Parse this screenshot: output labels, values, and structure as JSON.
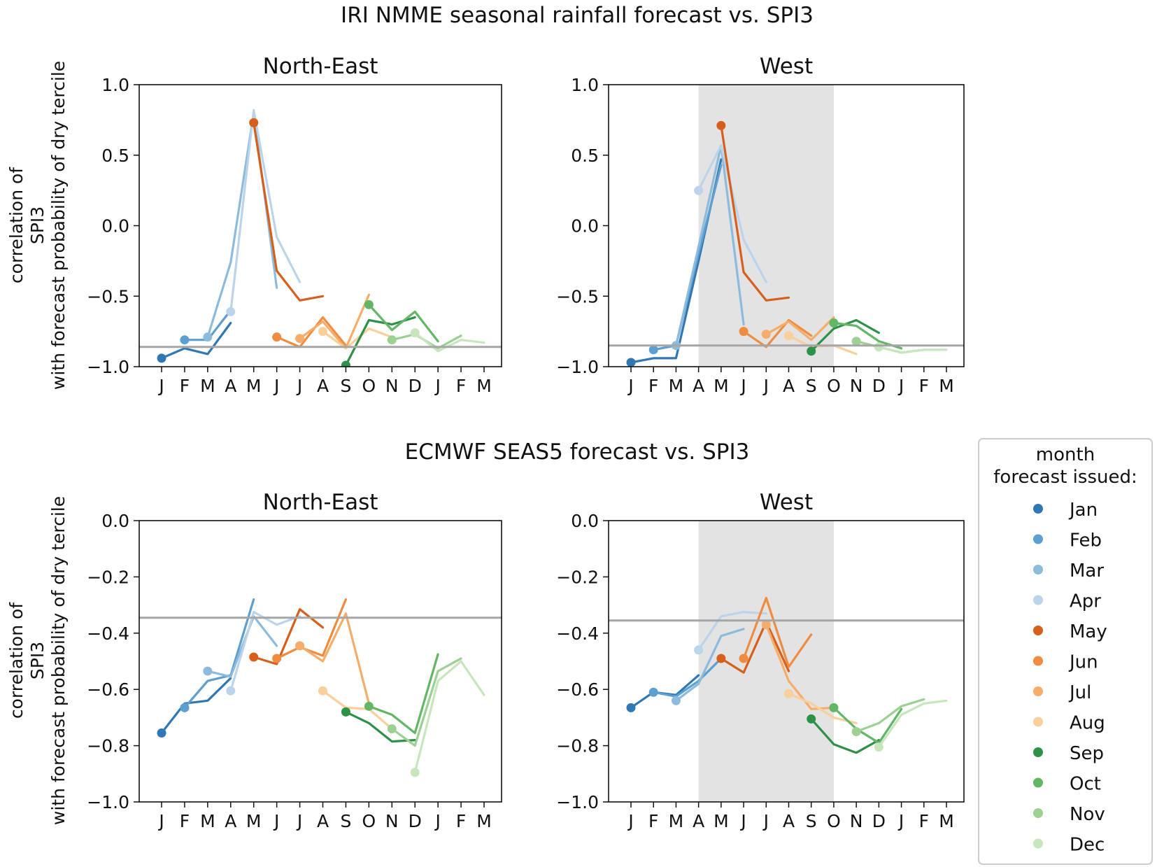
{
  "colors": {
    "Jan": "#2f78b3",
    "Feb": "#5d9fd0",
    "Mar": "#8dbbdc",
    "Apr": "#bcd4ea",
    "May": "#d75f1c",
    "Jun": "#ef8c3f",
    "Jul": "#f6ad69",
    "Aug": "#f9cf9b",
    "Sep": "#2e9148",
    "Oct": "#62b766",
    "Nov": "#9dd193",
    "Dec": "#c8e6be",
    "threshold": "#a6a6a6",
    "wet_season": "#e3e3e3"
  },
  "y_axis_label_line1": "correlation of",
  "y_axis_label_line2": "SPI3",
  "y_axis_label_line3": "with forecast probability of dry tercile",
  "legend": {
    "title_line1": "month",
    "title_line2": "forecast issued:",
    "items": [
      "Jan",
      "Feb",
      "Mar",
      "Apr",
      "May",
      "Jun",
      "Jul",
      "Aug",
      "Sep",
      "Oct",
      "Nov",
      "Dec"
    ]
  },
  "chart_data": [
    {
      "type": "line",
      "section_title": "IRI NMME seasonal rainfall forecast vs. SPI3",
      "title": "North-East",
      "x_tick_labels": [
        "J",
        "F",
        "M",
        "A",
        "M",
        "J",
        "J",
        "A",
        "S",
        "O",
        "N",
        "D",
        "J",
        "F",
        "M"
      ],
      "ylim": [
        -1.0,
        1.0
      ],
      "yticks": [
        1.0,
        0.5,
        0.0,
        -0.5,
        -1.0
      ],
      "y_tick_labels": [
        "1.0",
        "0.5",
        "0.0",
        "−0.5",
        "−1.0"
      ],
      "significance_threshold": -0.86,
      "wet_season_shaded": null,
      "series": [
        {
          "name": "Jan",
          "x": [
            0,
            1,
            2,
            3
          ],
          "values": [
            -0.94,
            -0.87,
            -0.91,
            -0.69
          ]
        },
        {
          "name": "Feb",
          "x": [
            1,
            2,
            3
          ],
          "values": [
            -0.81,
            -0.81,
            -0.6
          ]
        },
        {
          "name": "Mar",
          "x": [
            2,
            3,
            4,
            5
          ],
          "values": [
            -0.79,
            -0.26,
            0.8,
            -0.44
          ]
        },
        {
          "name": "Apr",
          "x": [
            3,
            4,
            5,
            6
          ],
          "values": [
            -0.61,
            0.82,
            -0.08,
            -0.4
          ]
        },
        {
          "name": "May",
          "x": [
            4,
            5,
            6,
            7
          ],
          "values": [
            0.73,
            -0.32,
            -0.53,
            -0.5
          ]
        },
        {
          "name": "Jun",
          "x": [
            5,
            6,
            7,
            8
          ],
          "values": [
            -0.79,
            -0.86,
            -0.65,
            -0.85
          ]
        },
        {
          "name": "Jul",
          "x": [
            6,
            7,
            8,
            9
          ],
          "values": [
            -0.8,
            -0.68,
            -0.87,
            -0.49
          ]
        },
        {
          "name": "Aug",
          "x": [
            7,
            8,
            9,
            10
          ],
          "values": [
            -0.75,
            -0.87,
            -0.73,
            -0.79
          ]
        },
        {
          "name": "Sep",
          "x": [
            8,
            9,
            10,
            11
          ],
          "values": [
            -0.99,
            -0.67,
            -0.7,
            -0.65
          ]
        },
        {
          "name": "Oct",
          "x": [
            9,
            10,
            11,
            12
          ],
          "values": [
            -0.56,
            -0.74,
            -0.61,
            -0.82
          ]
        },
        {
          "name": "Nov",
          "x": [
            10,
            11,
            12,
            13
          ],
          "values": [
            -0.81,
            -0.77,
            -0.87,
            -0.78
          ]
        },
        {
          "name": "Dec",
          "x": [
            11,
            12,
            13,
            14
          ],
          "values": [
            -0.76,
            -0.89,
            -0.81,
            -0.83
          ]
        }
      ]
    },
    {
      "type": "line",
      "title": "West",
      "x_tick_labels": [
        "J",
        "F",
        "M",
        "A",
        "M",
        "J",
        "J",
        "A",
        "S",
        "O",
        "N",
        "D",
        "J",
        "F",
        "M"
      ],
      "ylim": [
        -1.0,
        1.0
      ],
      "yticks": [
        1.0,
        0.5,
        0.0,
        -0.5,
        -1.0
      ],
      "y_tick_labels": [
        "1.0",
        "0.5",
        "0.0",
        "−0.5",
        "−1.0"
      ],
      "significance_threshold": -0.85,
      "wet_season_shaded": [
        3,
        9
      ],
      "series": [
        {
          "name": "Jan",
          "x": [
            0,
            1,
            2,
            3,
            4
          ],
          "values": [
            -0.97,
            -0.94,
            -0.94,
            -0.25,
            0.47
          ]
        },
        {
          "name": "Feb",
          "x": [
            1,
            2,
            3,
            4
          ],
          "values": [
            -0.88,
            -0.85,
            -0.2,
            0.43
          ]
        },
        {
          "name": "Mar",
          "x": [
            2,
            3,
            4,
            5
          ],
          "values": [
            -0.85,
            -0.15,
            0.57,
            -0.7
          ]
        },
        {
          "name": "Apr",
          "x": [
            3,
            4,
            5,
            6
          ],
          "values": [
            0.25,
            0.57,
            -0.1,
            -0.4
          ]
        },
        {
          "name": "May",
          "x": [
            4,
            5,
            6,
            7
          ],
          "values": [
            0.71,
            -0.33,
            -0.53,
            -0.51
          ]
        },
        {
          "name": "Jun",
          "x": [
            5,
            6,
            7,
            8
          ],
          "values": [
            -0.75,
            -0.86,
            -0.67,
            -0.78
          ]
        },
        {
          "name": "Jul",
          "x": [
            6,
            7,
            8,
            9
          ],
          "values": [
            -0.77,
            -0.68,
            -0.81,
            -0.65
          ]
        },
        {
          "name": "Aug",
          "x": [
            7,
            8,
            9,
            10
          ],
          "values": [
            -0.78,
            -0.86,
            -0.85,
            -0.91
          ]
        },
        {
          "name": "Sep",
          "x": [
            8,
            9,
            10,
            11
          ],
          "values": [
            -0.89,
            -0.73,
            -0.67,
            -0.76
          ]
        },
        {
          "name": "Oct",
          "x": [
            9,
            10,
            11,
            12
          ],
          "values": [
            -0.69,
            -0.71,
            -0.82,
            -0.87
          ]
        },
        {
          "name": "Nov",
          "x": [
            10,
            11,
            12,
            13
          ],
          "values": [
            -0.82,
            -0.86,
            -0.9,
            -0.88
          ]
        },
        {
          "name": "Dec",
          "x": [
            11,
            12,
            13,
            14
          ],
          "values": [
            -0.86,
            -0.9,
            -0.88,
            -0.88
          ]
        }
      ]
    },
    {
      "type": "line",
      "section_title": "ECMWF SEAS5 forecast vs. SPI3",
      "title": "North-East",
      "x_tick_labels": [
        "J",
        "F",
        "M",
        "A",
        "M",
        "J",
        "J",
        "A",
        "S",
        "O",
        "N",
        "D",
        "J",
        "F",
        "M"
      ],
      "ylim": [
        -1.0,
        0.0
      ],
      "yticks": [
        0.0,
        -0.2,
        -0.4,
        -0.6,
        -0.8,
        -1.0
      ],
      "y_tick_labels": [
        "0.0",
        "−0.2",
        "−0.4",
        "−0.6",
        "−0.8",
        "−1.0"
      ],
      "significance_threshold": -0.345,
      "wet_season_shaded": null,
      "series": [
        {
          "name": "Jan",
          "x": [
            0,
            1,
            2,
            3
          ],
          "values": [
            -0.755,
            -0.65,
            -0.64,
            -0.56
          ]
        },
        {
          "name": "Feb",
          "x": [
            1,
            2,
            3,
            4
          ],
          "values": [
            -0.665,
            -0.57,
            -0.55,
            -0.28
          ]
        },
        {
          "name": "Mar",
          "x": [
            2,
            3,
            4,
            5
          ],
          "values": [
            -0.535,
            -0.555,
            -0.34,
            -0.445
          ]
        },
        {
          "name": "Apr",
          "x": [
            3,
            4,
            5,
            6
          ],
          "values": [
            -0.605,
            -0.325,
            -0.37,
            -0.34
          ]
        },
        {
          "name": "May",
          "x": [
            4,
            5,
            6,
            7
          ],
          "values": [
            -0.485,
            -0.51,
            -0.315,
            -0.38
          ]
        },
        {
          "name": "Jun",
          "x": [
            5,
            6,
            7,
            8
          ],
          "values": [
            -0.49,
            -0.45,
            -0.48,
            -0.28
          ]
        },
        {
          "name": "Jul",
          "x": [
            6,
            7,
            8,
            9
          ],
          "values": [
            -0.445,
            -0.5,
            -0.33,
            -0.65
          ]
        },
        {
          "name": "Aug",
          "x": [
            7,
            8,
            9,
            10
          ],
          "values": [
            -0.605,
            -0.665,
            -0.67,
            -0.74
          ]
        },
        {
          "name": "Sep",
          "x": [
            8,
            9,
            10,
            11
          ],
          "values": [
            -0.68,
            -0.72,
            -0.785,
            -0.78
          ]
        },
        {
          "name": "Oct",
          "x": [
            9,
            10,
            11,
            12
          ],
          "values": [
            -0.66,
            -0.69,
            -0.755,
            -0.475
          ]
        },
        {
          "name": "Nov",
          "x": [
            10,
            11,
            12,
            13
          ],
          "values": [
            -0.74,
            -0.8,
            -0.535,
            -0.49
          ]
        },
        {
          "name": "Dec",
          "x": [
            11,
            12,
            13,
            14
          ],
          "values": [
            -0.895,
            -0.57,
            -0.5,
            -0.62
          ]
        }
      ]
    },
    {
      "type": "line",
      "title": "West",
      "x_tick_labels": [
        "J",
        "F",
        "M",
        "A",
        "M",
        "J",
        "J",
        "A",
        "S",
        "O",
        "N",
        "D",
        "J",
        "F",
        "M"
      ],
      "ylim": [
        -1.0,
        0.0
      ],
      "yticks": [
        0.0,
        -0.2,
        -0.4,
        -0.6,
        -0.8,
        -1.0
      ],
      "y_tick_labels": [
        "0.0",
        "−0.2",
        "−0.4",
        "−0.6",
        "−0.8",
        "−1.0"
      ],
      "significance_threshold": -0.355,
      "wet_season_shaded": [
        3,
        9
      ],
      "series": [
        {
          "name": "Jan",
          "x": [
            0,
            1,
            2,
            3
          ],
          "values": [
            -0.665,
            -0.61,
            -0.62,
            -0.55
          ]
        },
        {
          "name": "Feb",
          "x": [
            1,
            2,
            3,
            4
          ],
          "values": [
            -0.61,
            -0.625,
            -0.57,
            -0.49
          ]
        },
        {
          "name": "Mar",
          "x": [
            2,
            3,
            4,
            5
          ],
          "values": [
            -0.64,
            -0.58,
            -0.41,
            -0.385
          ]
        },
        {
          "name": "Apr",
          "x": [
            3,
            4,
            5,
            6
          ],
          "values": [
            -0.46,
            -0.34,
            -0.325,
            -0.33
          ]
        },
        {
          "name": "May",
          "x": [
            4,
            5,
            6,
            7
          ],
          "values": [
            -0.49,
            -0.54,
            -0.36,
            -0.535
          ]
        },
        {
          "name": "Jun",
          "x": [
            5,
            6,
            7,
            8
          ],
          "values": [
            -0.49,
            -0.275,
            -0.52,
            -0.405
          ]
        },
        {
          "name": "Jul",
          "x": [
            6,
            7,
            8,
            9
          ],
          "values": [
            -0.37,
            -0.57,
            -0.67,
            -0.665
          ]
        },
        {
          "name": "Aug",
          "x": [
            7,
            8,
            9,
            10
          ],
          "values": [
            -0.615,
            -0.65,
            -0.7,
            -0.72
          ]
        },
        {
          "name": "Sep",
          "x": [
            8,
            9,
            10,
            11
          ],
          "values": [
            -0.705,
            -0.795,
            -0.825,
            -0.78
          ]
        },
        {
          "name": "Oct",
          "x": [
            9,
            10,
            11,
            12
          ],
          "values": [
            -0.665,
            -0.74,
            -0.79,
            -0.67
          ]
        },
        {
          "name": "Nov",
          "x": [
            10,
            11,
            12,
            13
          ],
          "values": [
            -0.75,
            -0.72,
            -0.66,
            -0.635
          ]
        },
        {
          "name": "Dec",
          "x": [
            11,
            12,
            13,
            14
          ],
          "values": [
            -0.805,
            -0.69,
            -0.65,
            -0.64
          ]
        }
      ]
    }
  ]
}
